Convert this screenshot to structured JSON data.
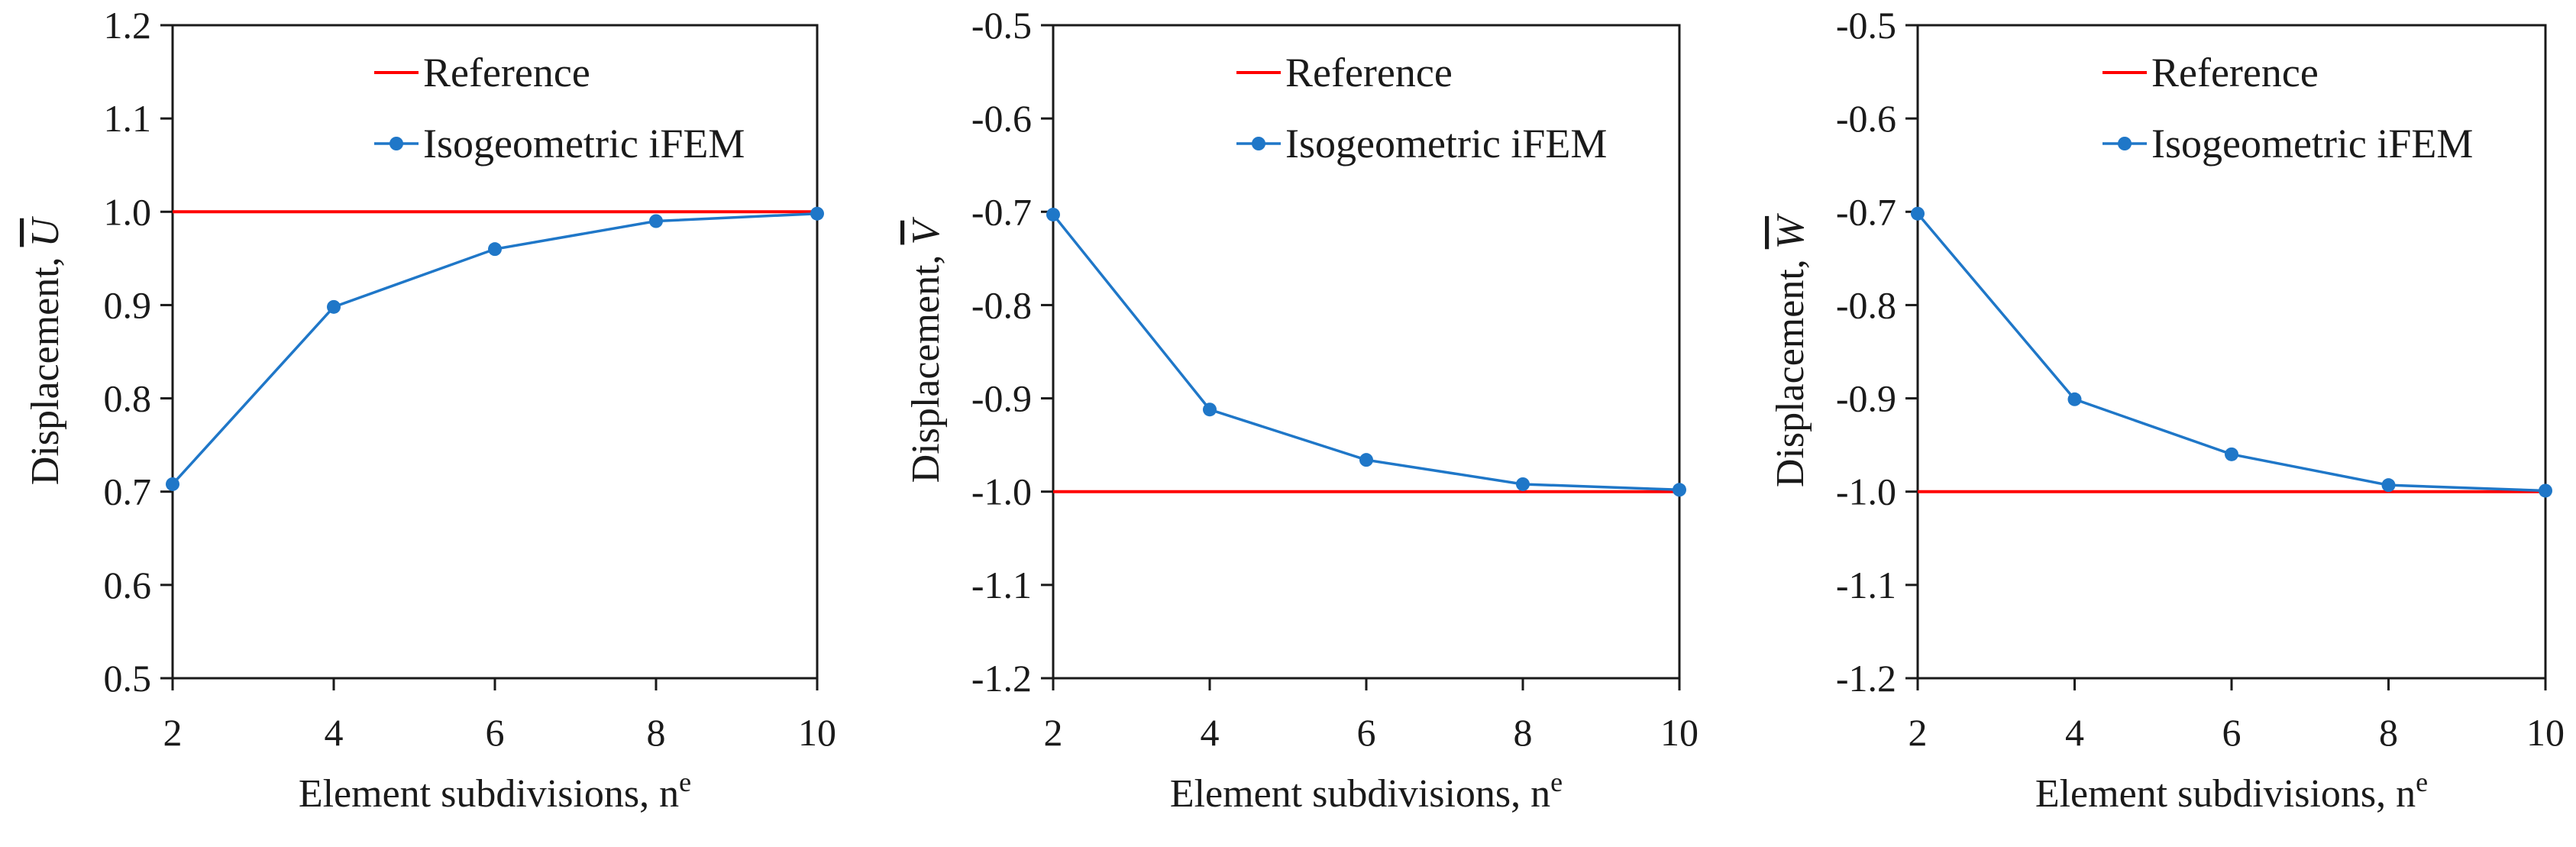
{
  "chart_data": [
    {
      "type": "line",
      "title": "",
      "xlabel": "Element subdivisions, n",
      "xlabel_sup": "e",
      "ylabel": "Displacement, ",
      "ylabel_symbol": "U",
      "x": [
        2,
        4,
        6,
        8,
        10
      ],
      "xlim": [
        2,
        10
      ],
      "ylim": [
        0.5,
        1.2
      ],
      "xticks": [
        "2",
        "4",
        "6",
        "8",
        "10"
      ],
      "yticks": [
        "1.2",
        "1.1",
        "1.0",
        "0.9",
        "0.8",
        "0.7",
        "0.6",
        "0.5"
      ],
      "ytick_values": [
        1.2,
        1.1,
        1.0,
        0.9,
        0.8,
        0.7,
        0.6,
        0.5
      ],
      "series": [
        {
          "name": "Reference",
          "kind": "hline",
          "color": "#ff0000",
          "values": [
            1.0,
            1.0,
            1.0,
            1.0,
            1.0
          ]
        },
        {
          "name": "Isogeometric iFEM",
          "kind": "line-marker",
          "color": "#1f77c8",
          "values": [
            0.708,
            0.898,
            0.96,
            0.99,
            0.998
          ]
        }
      ],
      "legend": "top-right"
    },
    {
      "type": "line",
      "title": "",
      "xlabel": "Element subdivisions, n",
      "xlabel_sup": "e",
      "ylabel": "Displacement, ",
      "ylabel_symbol": "V",
      "x": [
        2,
        4,
        6,
        8,
        10
      ],
      "xlim": [
        2,
        10
      ],
      "ylim": [
        -1.2,
        -0.5
      ],
      "xticks": [
        "2",
        "4",
        "6",
        "8",
        "10"
      ],
      "yticks": [
        "-0.5",
        "-0.6",
        "-0.7",
        "-0.8",
        "-0.9",
        "-1.0",
        "-1.1",
        "-1.2"
      ],
      "ytick_values": [
        -0.5,
        -0.6,
        -0.7,
        -0.8,
        -0.9,
        -1.0,
        -1.1,
        -1.2
      ],
      "series": [
        {
          "name": "Reference",
          "kind": "hline",
          "color": "#ff0000",
          "values": [
            -1.0,
            -1.0,
            -1.0,
            -1.0,
            -1.0
          ]
        },
        {
          "name": "Isogeometric iFEM",
          "kind": "line-marker",
          "color": "#1f77c8",
          "values": [
            -0.703,
            -0.912,
            -0.966,
            -0.992,
            -0.998
          ]
        }
      ],
      "legend": "top-right"
    },
    {
      "type": "line",
      "title": "",
      "xlabel": "Element subdivisions, n",
      "xlabel_sup": "e",
      "ylabel": "Displacement, ",
      "ylabel_symbol": "W",
      "x": [
        2,
        4,
        6,
        8,
        10
      ],
      "xlim": [
        2,
        10
      ],
      "ylim": [
        -1.2,
        -0.5
      ],
      "xticks": [
        "2",
        "4",
        "6",
        "8",
        "10"
      ],
      "yticks": [
        "-0.5",
        "-0.6",
        "-0.7",
        "-0.8",
        "-0.9",
        "-1.0",
        "-1.1",
        "-1.2"
      ],
      "ytick_values": [
        -0.5,
        -0.6,
        -0.7,
        -0.8,
        -0.9,
        -1.0,
        -1.1,
        -1.2
      ],
      "series": [
        {
          "name": "Reference",
          "kind": "hline",
          "color": "#ff0000",
          "values": [
            -1.0,
            -1.0,
            -1.0,
            -1.0,
            -1.0
          ]
        },
        {
          "name": "Isogeometric iFEM",
          "kind": "line-marker",
          "color": "#1f77c8",
          "values": [
            -0.702,
            -0.901,
            -0.96,
            -0.993,
            -0.999
          ]
        }
      ],
      "legend": "top-right"
    }
  ]
}
